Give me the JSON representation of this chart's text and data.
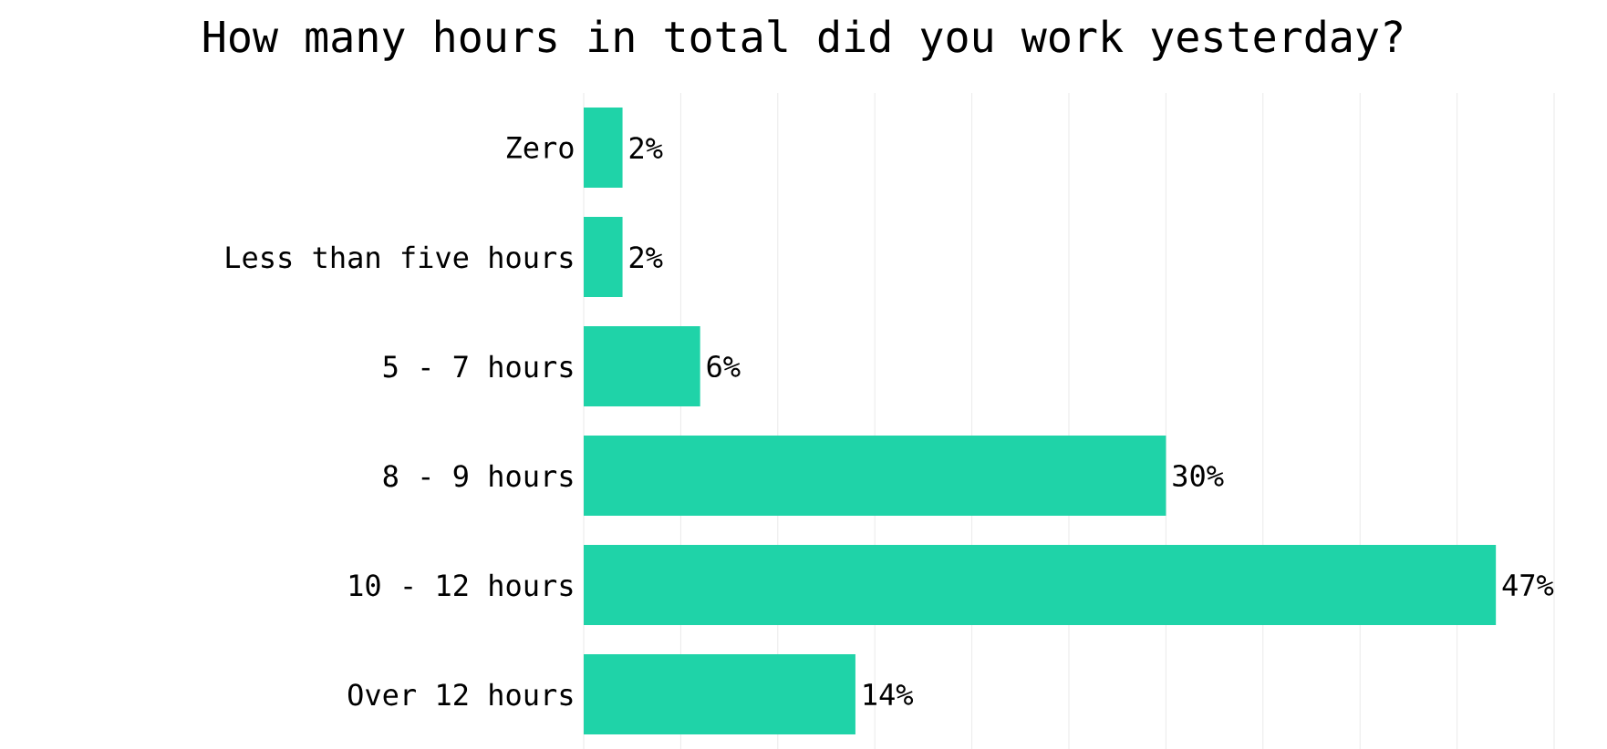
{
  "chart_data": {
    "type": "bar",
    "orientation": "horizontal",
    "title": "How many hours in total did you work yesterday?",
    "categories": [
      "Zero",
      "Less than five hours",
      "5 - 7 hours",
      "8 - 9 hours",
      "10 - 12 hours",
      "Over 12 hours"
    ],
    "values": [
      2,
      2,
      6,
      30,
      47,
      14
    ],
    "value_labels": [
      "2%",
      "2%",
      "6%",
      "30%",
      "47%",
      "14%"
    ],
    "color": "#1fd3a8",
    "xlim": [
      0,
      50
    ],
    "xticks": [
      {
        "value": 0,
        "label": null
      },
      {
        "value": 5,
        "label": null
      },
      {
        "value": 10,
        "label": null
      },
      {
        "value": 15,
        "label": null
      },
      {
        "value": 20,
        "label": null
      },
      {
        "value": 25,
        "label": null
      },
      {
        "value": 30,
        "label": null
      },
      {
        "value": 35,
        "label": null
      },
      {
        "value": 40,
        "label": null
      },
      {
        "value": 45,
        "label": null
      },
      {
        "value": 50,
        "label": null
      }
    ],
    "grid": "x",
    "tick_labels": "y"
  }
}
